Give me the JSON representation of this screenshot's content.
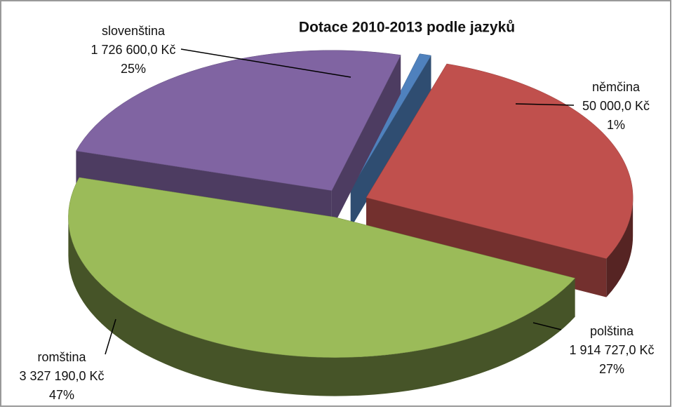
{
  "chart_data": {
    "type": "pie3d",
    "title": "Dotace 2010-2013  podle jazyků",
    "categories": [
      "němčina",
      "polština",
      "romština",
      "slovenština"
    ],
    "values": [
      50000,
      1914727,
      3327190,
      1726600
    ],
    "value_labels": [
      "50 000,0 Kč",
      "1 914 727,0 Kč",
      "3 327 190,0 Kč",
      "1 726 600,0 Kč"
    ],
    "percentages": [
      1,
      27,
      47,
      25
    ],
    "percentage_labels": [
      "1%",
      "27%",
      "47%",
      "25%"
    ],
    "colors": [
      "#4f81bd",
      "#c0504d",
      "#9bbb59",
      "#8064a2"
    ]
  }
}
